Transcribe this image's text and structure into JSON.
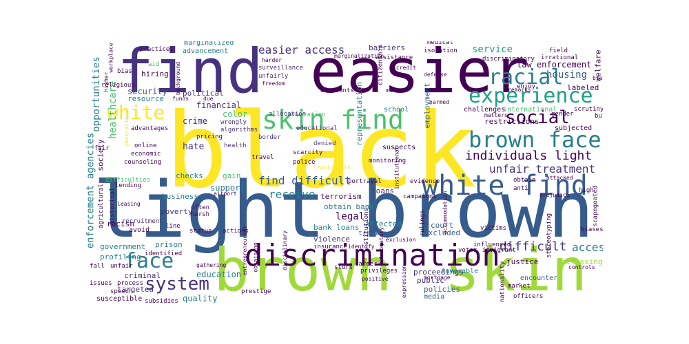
{
  "colors": {
    "yellow": "#fde725",
    "lime": "#a0da39",
    "green": "#4ac16d",
    "teal": "#1fa187",
    "cyan": "#277f8e",
    "blue": "#365c8d",
    "indigo": "#46327e",
    "purple": "#440154"
  },
  "words": [
    "black",
    "light",
    "brown",
    "brown",
    "skin",
    "find",
    "easier",
    "discrimination",
    "white find",
    "skin find",
    "experience",
    "brown face",
    "racial",
    "white",
    "social",
    "face",
    "system",
    "individuals light",
    "easier access",
    "unfair treatment",
    "find difficult",
    "difficult",
    "access",
    "law enforcement",
    "housing",
    "security",
    "legal",
    "opportunities",
    "enforcement agencies",
    "support",
    "receive",
    "healthcare",
    "education",
    "quality",
    "service",
    "barriers",
    "hate",
    "financial",
    "crime",
    "hiring",
    "political",
    "resource",
    "color",
    "gain",
    "poverty",
    "business",
    "affected",
    "loans",
    "obtain bank",
    "bank loans",
    "terrorism",
    "criminal",
    "targeted",
    "justice",
    "prison",
    "profiling",
    "government",
    "court",
    "excluded",
    "policies",
    "proceedings",
    "public",
    "racism",
    "society",
    "checks",
    "labeled",
    "welfare",
    "media",
    "employment",
    "favorable",
    "accessing",
    "encounter",
    "restrictions",
    "subjected",
    "suspects",
    "representation",
    "school",
    "challenges",
    "international",
    "violence",
    "treatment",
    "marginalized",
    "advancement",
    "surveillance",
    "unfairly",
    "citizenship",
    "discriminatory",
    "practices",
    "aid",
    "religious",
    "bias",
    "denied",
    "educational",
    "immigration",
    "border",
    "health",
    "travel",
    "scarcity",
    "police",
    "trust",
    "allocation",
    "wrongly",
    "algorithms",
    "pricing",
    "online",
    "economic",
    "counseling",
    "advantages",
    "fair",
    "difficulties",
    "lending",
    "agricultural",
    "historical",
    "recruitment",
    "harsh",
    "often",
    "status",
    "avoid",
    "line",
    "actions",
    "prestige",
    "career",
    "insurance",
    "mortgage",
    "market",
    "officers",
    "speech",
    "process",
    "issues",
    "susceptible",
    "subsidies",
    "identified",
    "unfair",
    "fall",
    "victims",
    "voter",
    "immigrant",
    "biases",
    "stereotyping",
    "scapegoated",
    "high",
    "bullying",
    "scrutiny",
    "gender",
    "enjoy",
    "remarks",
    "irrational",
    "field",
    "transportation",
    "biased",
    "medical",
    "isolation",
    "credit",
    "mental",
    "defense",
    "discounts",
    "freedom",
    "funds",
    "due",
    "background",
    "workplace",
    "higher",
    "harder",
    "assistance",
    "privileges",
    "positive",
    "grants",
    "monitoring",
    "portrayal",
    "evidence",
    "campaigns",
    "obtain",
    "anti",
    "attacked",
    "prejudice",
    "rulings",
    "institutions",
    "influenced",
    "obstacles",
    "nationality",
    "controls",
    "exclusion",
    "accommodation",
    "derogatory",
    "identify",
    "slurs",
    "expression",
    "generational",
    "gathering",
    "matters",
    "harmed",
    "institutional",
    "entrepreneurial",
    "obtaining",
    "disciplinary",
    "airport",
    "leasing",
    "marginalization"
  ]
}
